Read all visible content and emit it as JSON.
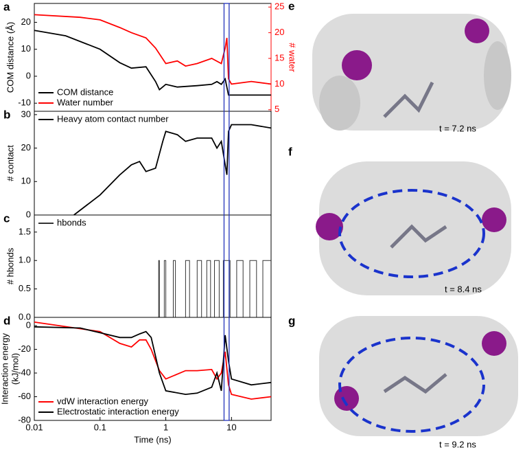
{
  "chart_data": [
    {
      "type": "line",
      "panel": "a",
      "ylabel": "COM distance (Å)",
      "y2label": "# water",
      "legend": "lower left",
      "xlim": [
        0.01,
        40
      ],
      "ylim": [
        -13,
        27
      ],
      "yticks": [
        -10,
        0,
        10,
        20
      ],
      "y2lim": [
        4.7,
        25.7
      ],
      "y2ticks": [
        5,
        10,
        15,
        20,
        25
      ],
      "y2color": "#ff0000",
      "highlight_x": [
        7.7,
        9.2
      ],
      "highlight_color": "#2233bb",
      "series": [
        {
          "name": "COM distance",
          "color": "#000000",
          "x": [
            0.01,
            0.03,
            0.1,
            0.2,
            0.3,
            0.5,
            0.7,
            0.8,
            1,
            1.5,
            3,
            5,
            6,
            7,
            8,
            9,
            10,
            20,
            40
          ],
          "values": [
            17,
            15,
            10,
            5,
            3,
            3.5,
            -2,
            -5,
            -3,
            -4,
            -3.5,
            -3,
            -2,
            -3,
            -1,
            -7,
            -7,
            -7,
            -7
          ]
        },
        {
          "name": "Water number",
          "color": "#ff0000",
          "axis": "y2",
          "x": [
            0.01,
            0.05,
            0.1,
            0.2,
            0.3,
            0.5,
            0.7,
            1,
            1.5,
            2,
            3,
            5,
            7,
            8,
            8.5,
            9,
            10,
            20,
            40
          ],
          "values": [
            23.5,
            23,
            22.5,
            21,
            20,
            19,
            17,
            14,
            14.5,
            13.5,
            14,
            15,
            14,
            17,
            19,
            11,
            10,
            10.5,
            10
          ]
        }
      ]
    },
    {
      "type": "line",
      "panel": "b",
      "ylabel": "# contact",
      "legend": "upper left",
      "xlim": [
        0.01,
        40
      ],
      "ylim": [
        0,
        31
      ],
      "yticks": [
        0,
        10,
        20,
        30
      ],
      "series": [
        {
          "name": "Heavy atom contact number",
          "color": "#000000",
          "x": [
            0.04,
            0.1,
            0.2,
            0.3,
            0.4,
            0.5,
            0.7,
            0.9,
            1,
            1.5,
            2,
            3,
            5,
            6,
            7,
            8,
            8.5,
            9,
            10,
            20,
            40
          ],
          "values": [
            0,
            6,
            12,
            15,
            16,
            13,
            14,
            22,
            25,
            24,
            22,
            23,
            23,
            20,
            22,
            15,
            12,
            25,
            27,
            27,
            26
          ]
        }
      ]
    },
    {
      "type": "line",
      "panel": "c",
      "ylabel": "# hbonds",
      "legend": "upper left",
      "xlim": [
        0.01,
        40
      ],
      "ylim": [
        0,
        1.8
      ],
      "yticks": [
        {
          "value": 0,
          "label": "0.0"
        },
        {
          "value": 0.5,
          "label": "0.5"
        },
        {
          "value": 1,
          "label": "1.0"
        },
        {
          "value": 1.5,
          "label": "1.5"
        }
      ],
      "series": [
        {
          "name": "hbonds",
          "color": "#333333",
          "x": [
            0.01,
            0.78,
            0.78,
            0.8,
            0.8,
            0.95,
            0.95,
            1.0,
            1.0,
            1.3,
            1.3,
            1.4,
            1.4,
            2.0,
            2.0,
            2.3,
            2.3,
            3.0,
            3.0,
            3.5,
            3.5,
            4.2,
            4.2,
            4.8,
            4.8,
            5.5,
            5.5,
            6.5,
            6.5,
            7.5,
            7.5,
            9.5,
            9.5,
            12,
            12,
            15,
            15,
            19,
            19,
            24,
            24,
            30,
            30,
            40
          ],
          "values": [
            0,
            0,
            1,
            1,
            0,
            0,
            1,
            1,
            0,
            0,
            1,
            1,
            0,
            0,
            1,
            1,
            0,
            0,
            1,
            1,
            0,
            0,
            1,
            1,
            0,
            0,
            1,
            1,
            0,
            0,
            1,
            1,
            0,
            0,
            1,
            1,
            0,
            0,
            1,
            1,
            0,
            0,
            1,
            1
          ]
        }
      ]
    },
    {
      "type": "line",
      "panel": "d",
      "ylabel": [
        "Interaction energy",
        "(kJ/mol)"
      ],
      "xlabel": "Time (ns)",
      "legend": "lower left",
      "xlim": [
        0.01,
        40
      ],
      "xticks": [
        0.01,
        0.1,
        1,
        10
      ],
      "ylim": [
        -80,
        7
      ],
      "yticks": [
        -80,
        -60,
        -40,
        -20,
        0
      ],
      "series": [
        {
          "name": "vdW interaction energy",
          "color": "#ff0000",
          "x": [
            0.01,
            0.1,
            0.2,
            0.3,
            0.4,
            0.5,
            0.6,
            0.8,
            1,
            2,
            3,
            5,
            6,
            7,
            8,
            9,
            10,
            20,
            40
          ],
          "values": [
            3,
            -5,
            -15,
            -18,
            -12,
            -12,
            -20,
            -38,
            -45,
            -38,
            -38,
            -37,
            -45,
            -40,
            -22,
            -50,
            -58,
            -62,
            -60
          ]
        },
        {
          "name": "Electrostatic interaction energy",
          "color": "#000000",
          "x": [
            0.01,
            0.05,
            0.1,
            0.2,
            0.3,
            0.4,
            0.5,
            0.6,
            0.8,
            1,
            2,
            3,
            5,
            6,
            7,
            8,
            9,
            10,
            20,
            40
          ],
          "values": [
            -1,
            -2,
            -6,
            -10,
            -10,
            -7,
            -5,
            -10,
            -40,
            -55,
            -58,
            -57,
            -52,
            -40,
            -55,
            -8,
            -30,
            -45,
            -50,
            -48
          ]
        }
      ]
    }
  ],
  "panels": [
    {
      "label": "e",
      "caption": "t = 7.2 ns"
    },
    {
      "label": "f",
      "caption": "t = 8.4 ns"
    },
    {
      "label": "g",
      "caption": "t = 9.2 ns"
    }
  ]
}
